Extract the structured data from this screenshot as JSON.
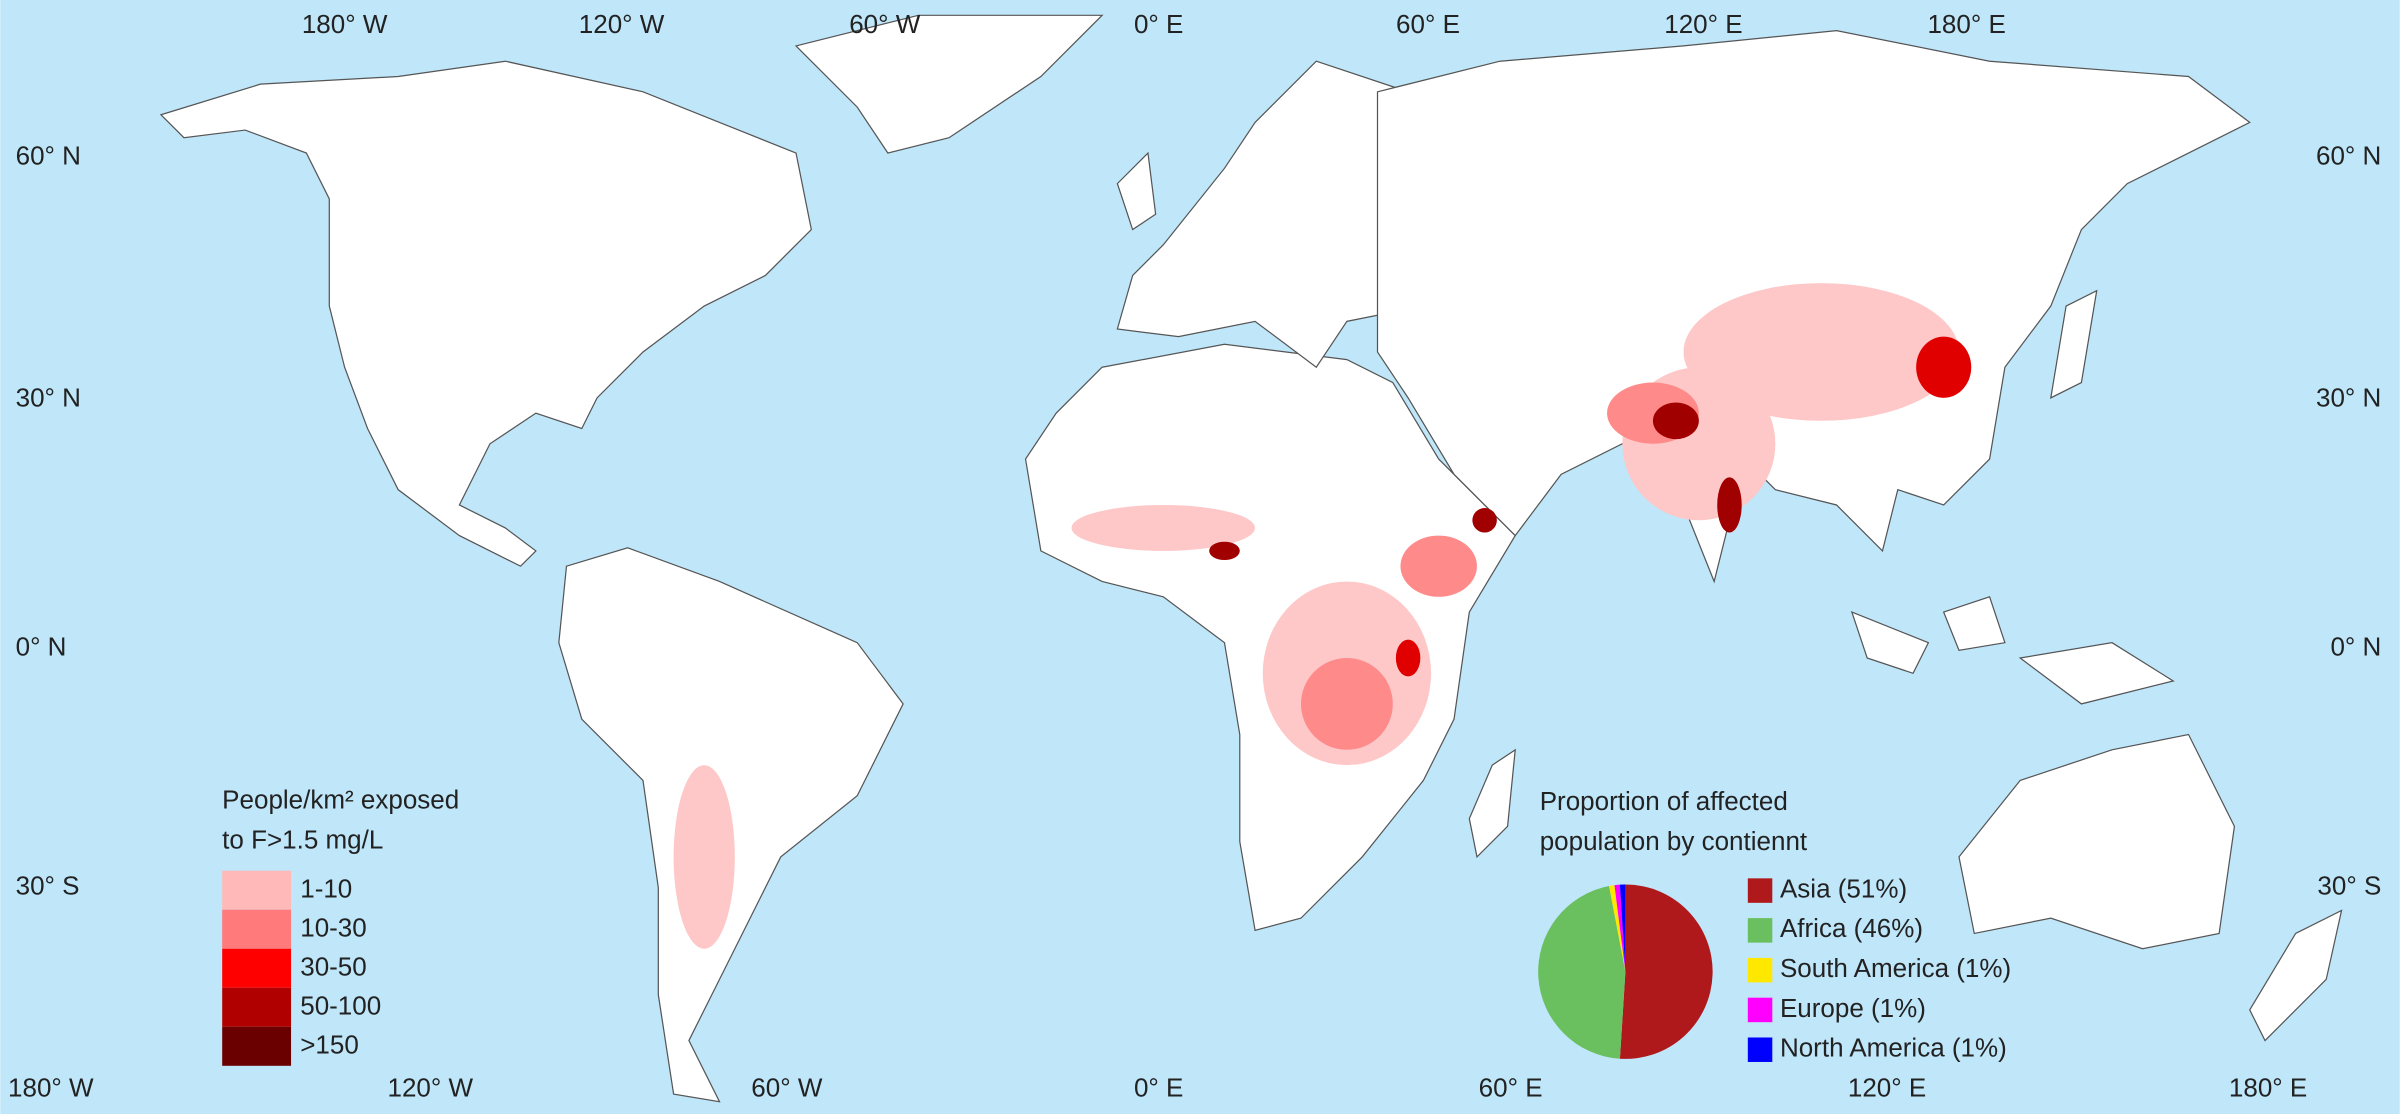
{
  "map": {
    "top_labels": [
      "180° W",
      "120° W",
      "60° W",
      "0° E",
      "60° E",
      "120° E",
      "180° E"
    ],
    "bottom_labels": [
      "180° W",
      "120° W",
      "60° W",
      "0° E",
      "60° E",
      "120° E",
      "180° E"
    ],
    "left_labels": [
      "60° N",
      "30° N",
      "0° N",
      "30° S"
    ],
    "right_labels": [
      "60° N",
      "30° N",
      "0° N",
      "30° S"
    ]
  },
  "legend": {
    "title": [
      "People/km² exposed",
      "to F>1.5 mg/L"
    ],
    "items": [
      {
        "label": "1-10",
        "color": "#ffb9b9"
      },
      {
        "label": "10-30",
        "color": "#ff7b7b"
      },
      {
        "label": "30-50",
        "color": "#ff0000"
      },
      {
        "label": "50-100",
        "color": "#b00000"
      },
      {
        "label": ">150",
        "color": "#6a0000"
      }
    ]
  },
  "chart_data": {
    "type": "pie",
    "title": [
      "Proportion of affected",
      "population by contiennt"
    ],
    "categories": [
      "Asia",
      "Africa",
      "South America",
      "Europe",
      "North America"
    ],
    "values": [
      51,
      46,
      1,
      1,
      1
    ],
    "value_labels": [
      "Asia (51%)",
      "Africa (46%)",
      "South America (1%)",
      "Europe (1%)",
      "North America (1%)"
    ],
    "colors": [
      "#b0191b",
      "#6abf5e",
      "#ffe800",
      "#ff00ff",
      "#0000ff"
    ]
  }
}
